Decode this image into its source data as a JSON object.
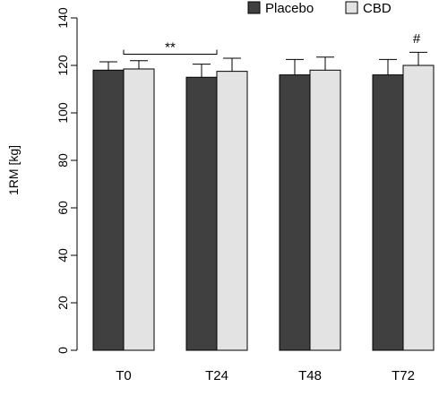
{
  "chart_data": {
    "type": "bar",
    "ylabel": "1RM [kg]",
    "ylim": [
      0,
      140
    ],
    "yticks": [
      "0",
      "20",
      "40",
      "60",
      "80",
      "100",
      "120",
      "140"
    ],
    "categories": [
      "T0",
      "T24",
      "T48",
      "T72"
    ],
    "series": [
      {
        "name": "Placebo",
        "values": [
          118,
          115,
          116,
          116
        ],
        "errors": [
          3.5,
          5.5,
          6.5,
          6.5
        ],
        "color": "#404040"
      },
      {
        "name": "CBD",
        "values": [
          118.5,
          117.5,
          118,
          120
        ],
        "errors": [
          3.5,
          5.5,
          5.5,
          5.5
        ],
        "color": "#e3e3e3"
      }
    ],
    "legend_position": "top-right",
    "grid": false,
    "annotations": [
      {
        "text": "**",
        "type": "bracket",
        "from_category": "T0",
        "to_category": "T24",
        "y": 130
      },
      {
        "text": "#",
        "type": "marker",
        "category": "T72",
        "series": "CBD",
        "y": 131
      }
    ]
  }
}
